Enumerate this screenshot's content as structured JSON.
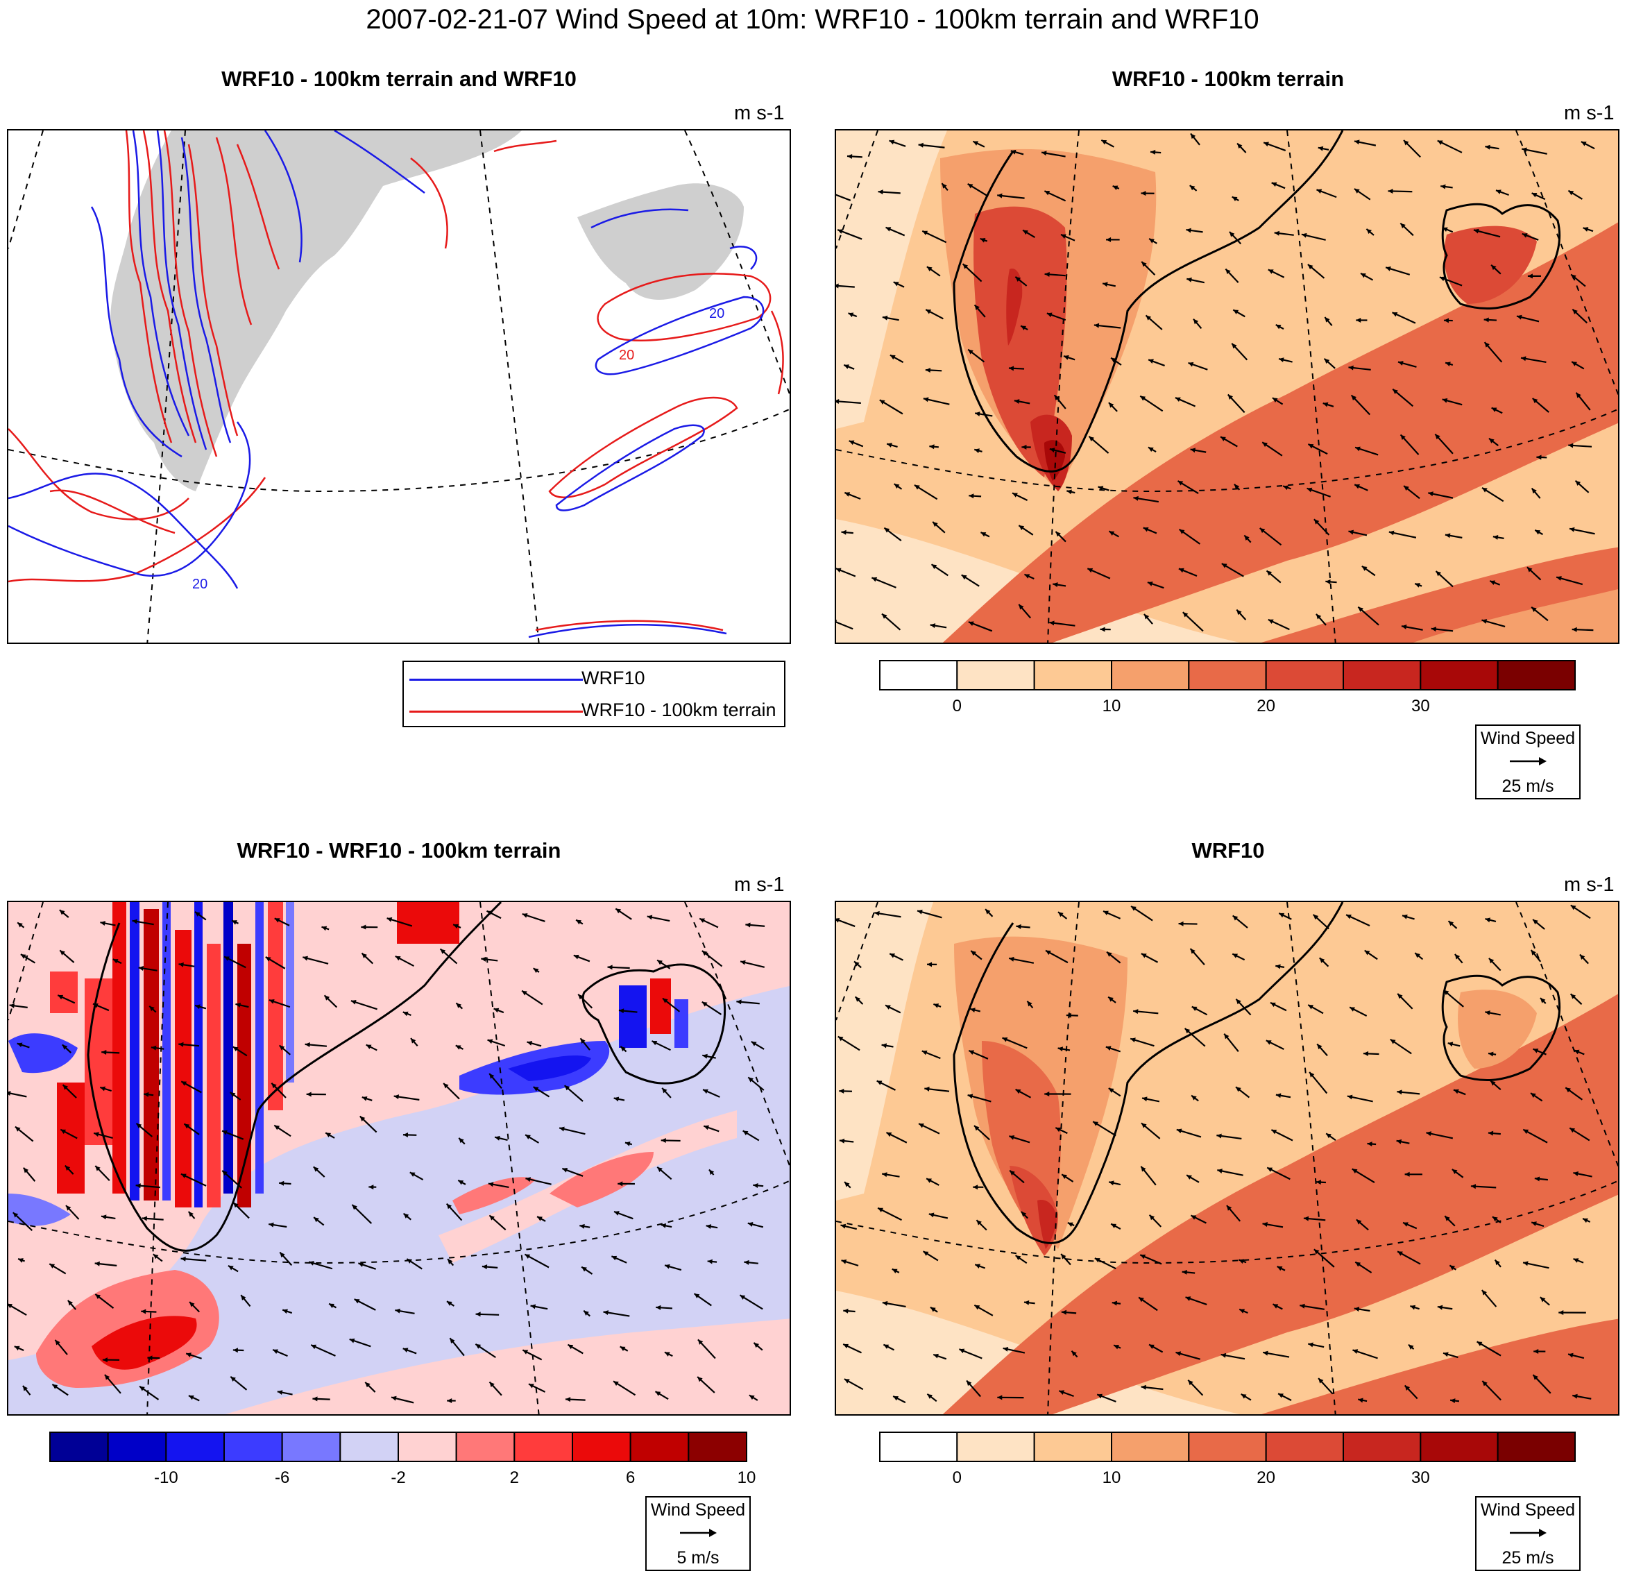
{
  "page_title": "2007-02-21-07 Wind Speed at 10m: WRF10 - 100km terrain and WRF10",
  "colors": {
    "wrf10_line": "#1a1ae6",
    "wrf10_100km_line": "#e61a1a",
    "land_shade": "#cfcfcf"
  },
  "panels": {
    "contour": {
      "title": "WRF10 - 100km terrain and WRF10",
      "units": "m s-1",
      "contour_label": "20",
      "legend": [
        {
          "label": "WRF10",
          "color": "#1a1ae6"
        },
        {
          "label": "WRF10 - 100km terrain",
          "color": "#e61a1a"
        }
      ]
    },
    "wrf10_100km": {
      "title": "WRF10 - 100km terrain",
      "units": "m s-1",
      "vector_ref_title": "Wind Speed",
      "vector_ref_label": "25 m/s"
    },
    "difference": {
      "title": "WRF10 - WRF10 - 100km terrain",
      "units": "m s-1",
      "vector_ref_title": "Wind Speed",
      "vector_ref_label": "5 m/s"
    },
    "wrf10": {
      "title": "WRF10",
      "units": "m s-1",
      "vector_ref_title": "Wind Speed",
      "vector_ref_label": "25 m/s"
    }
  },
  "chart_data": [
    {
      "type": "heatmap",
      "panel": "wrf10_100km",
      "title": "WRF10 - 100km terrain",
      "units": "m s-1",
      "colorbar": {
        "levels": [
          0,
          5,
          10,
          15,
          20,
          25,
          30,
          35
        ],
        "tick_labels": [
          "0",
          "10",
          "20",
          "30"
        ],
        "tick_values": [
          0,
          10,
          20,
          30
        ],
        "colors": [
          "#ffffff",
          "#fee3c4",
          "#fdc994",
          "#f5a06c",
          "#e86a48",
          "#dc4a36",
          "#c8261f",
          "#a80808",
          "#7a0000"
        ]
      },
      "vector_reference": {
        "label": "Wind Speed",
        "value": "25 m/s"
      }
    },
    {
      "type": "heatmap",
      "panel": "difference",
      "title": "WRF10 - WRF10 - 100km terrain",
      "units": "m s-1",
      "colorbar": {
        "levels": [
          -12,
          -10,
          -8,
          -6,
          -4,
          -2,
          0,
          2,
          4,
          6,
          8,
          10,
          12
        ],
        "tick_labels": [
          "-10",
          "-6",
          "-2",
          "2",
          "6",
          "10"
        ],
        "tick_values": [
          -10,
          -6,
          -2,
          2,
          6,
          10
        ],
        "colors": [
          "#000096",
          "#0000c8",
          "#1414f0",
          "#3c3cff",
          "#7878ff",
          "#d2d2f5",
          "#ffd2d2",
          "#ff7878",
          "#ff3c3c",
          "#eb0a0a",
          "#c00000",
          "#8c0000"
        ]
      },
      "vector_reference": {
        "label": "Wind Speed",
        "value": "5 m/s"
      }
    },
    {
      "type": "heatmap",
      "panel": "wrf10",
      "title": "WRF10",
      "units": "m s-1",
      "colorbar": {
        "levels": [
          0,
          5,
          10,
          15,
          20,
          25,
          30,
          35
        ],
        "tick_labels": [
          "0",
          "10",
          "20",
          "30"
        ],
        "tick_values": [
          0,
          10,
          20,
          30
        ],
        "colors": [
          "#ffffff",
          "#fee3c4",
          "#fdc994",
          "#f5a06c",
          "#e86a48",
          "#dc4a36",
          "#c8261f",
          "#a80808",
          "#7a0000"
        ]
      },
      "vector_reference": {
        "label": "Wind Speed",
        "value": "25 m/s"
      }
    }
  ]
}
